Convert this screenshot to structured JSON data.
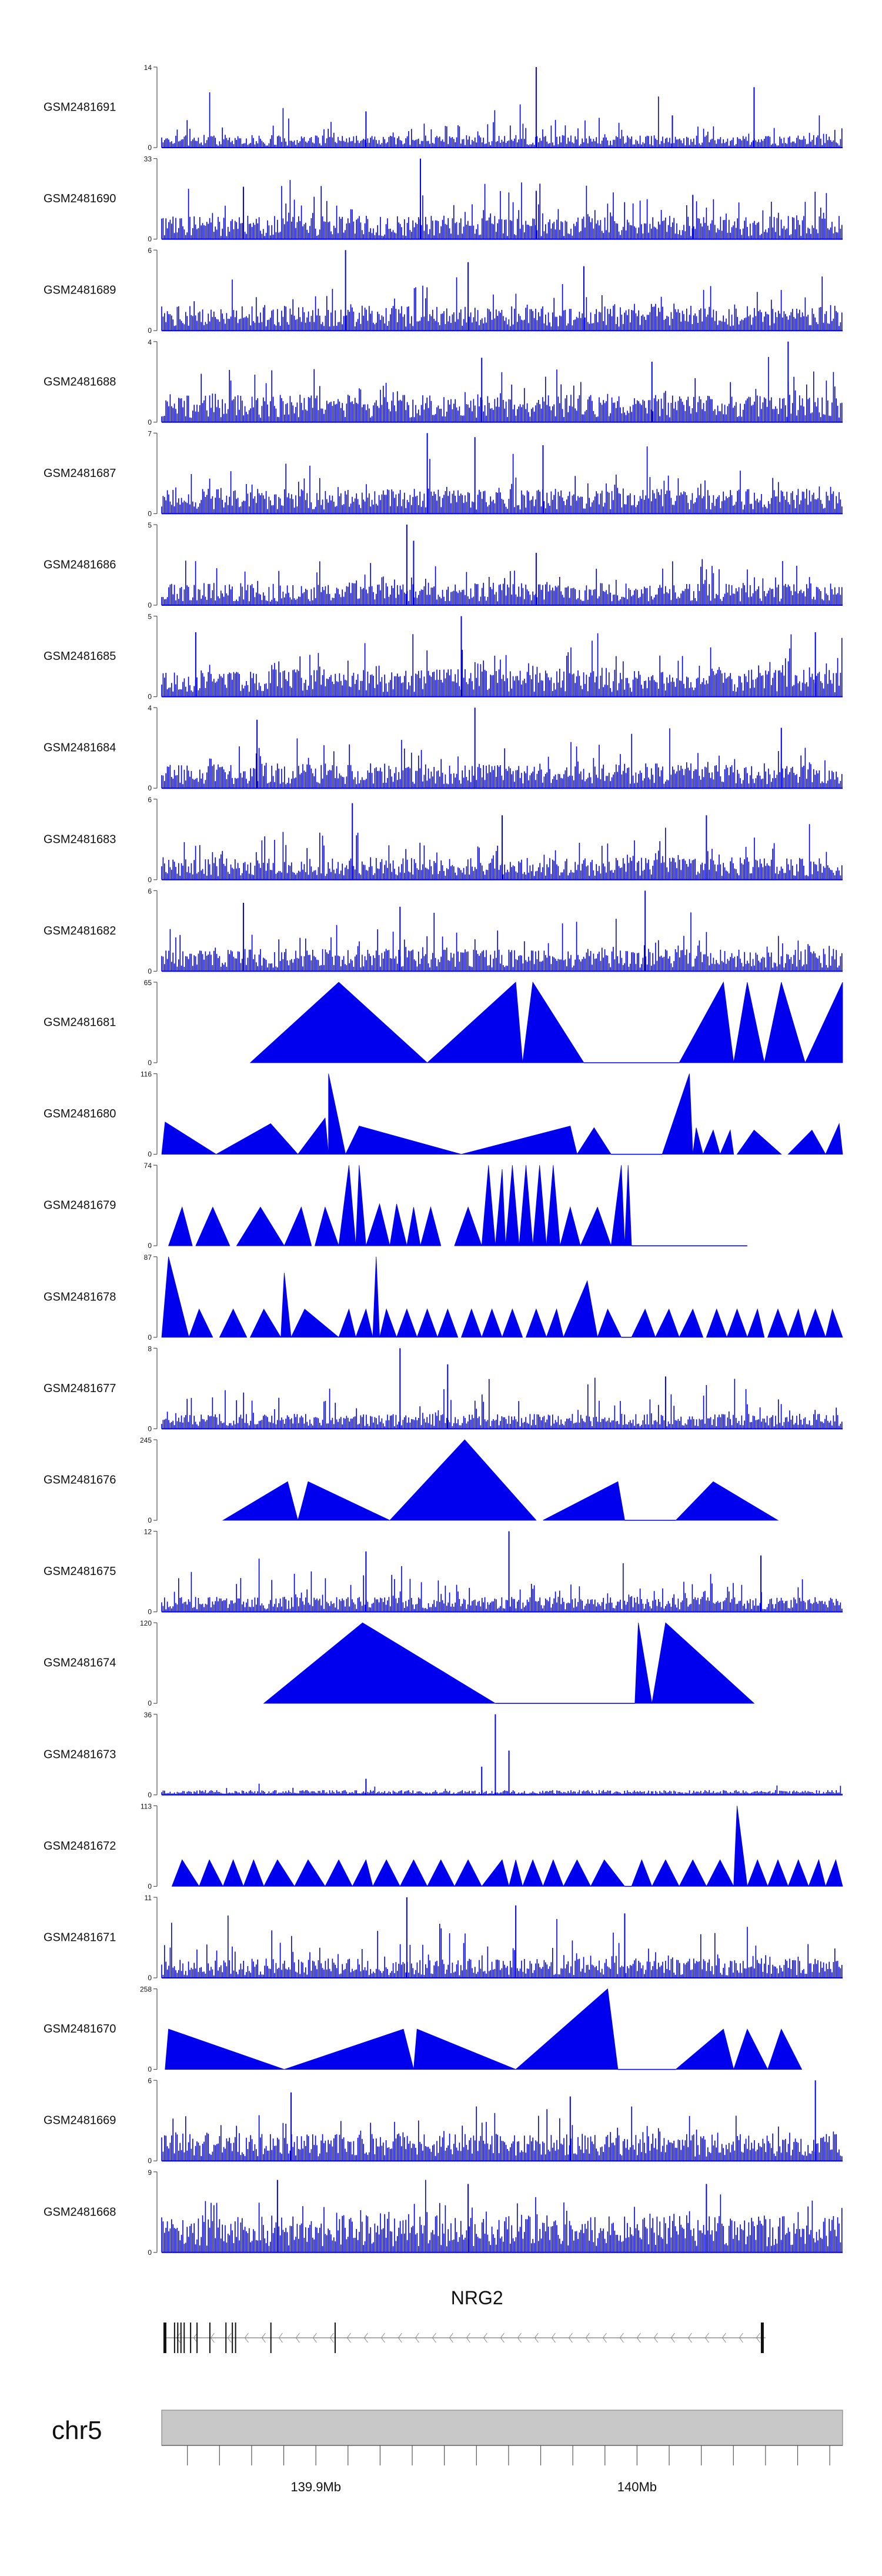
{
  "chart_data": {
    "type": "area",
    "title": "",
    "xlabel": "",
    "ylabel": "",
    "chromosome": "chr5",
    "x_range_mb": [
      139.852,
      140.064
    ],
    "x_ticks": [
      {
        "value": 139.9,
        "label": "139.9Mb"
      },
      {
        "value": 140.0,
        "label": "140Mb"
      }
    ],
    "gene": {
      "name": "NRG2",
      "strand": "-",
      "start_mb": 139.853,
      "end_mb": 140.04,
      "exons_mb": [
        139.853,
        139.856,
        139.857,
        139.858,
        139.859,
        139.861,
        139.863,
        139.867,
        139.872,
        139.874,
        139.875,
        139.886,
        139.906,
        140.039
      ]
    },
    "series_color": "#0000ee",
    "series": [
      {
        "name": "GSM2481691",
        "ymax": 14,
        "style": "dense",
        "baseline": 0.1,
        "seed": 91,
        "peaks": [
          [
            0.55,
            1.0
          ],
          [
            0.87,
            0.75
          ],
          [
            0.3,
            0.45
          ],
          [
            0.75,
            0.4
          ]
        ]
      },
      {
        "name": "GSM2481690",
        "ymax": 33,
        "style": "mixed",
        "baseline": 0.18,
        "seed": 90,
        "peaks": [
          [
            0.38,
            1.0
          ],
          [
            0.12,
            0.65
          ],
          [
            0.55,
            0.6
          ],
          [
            0.78,
            0.55
          ]
        ]
      },
      {
        "name": "GSM2481689",
        "ymax": 6,
        "style": "dense",
        "baseline": 0.2,
        "seed": 89,
        "peaks": [
          [
            0.27,
            1.0
          ],
          [
            0.45,
            0.85
          ],
          [
            0.62,
            0.8
          ]
        ]
      },
      {
        "name": "GSM2481688",
        "ymax": 4,
        "style": "dense",
        "baseline": 0.22,
        "seed": 88,
        "peaks": [
          [
            0.92,
            1.0
          ],
          [
            0.47,
            0.8
          ],
          [
            0.72,
            0.75
          ]
        ]
      },
      {
        "name": "GSM2481687",
        "ymax": 7,
        "style": "dense",
        "baseline": 0.2,
        "seed": 87,
        "peaks": [
          [
            0.39,
            1.0
          ],
          [
            0.46,
            0.95
          ],
          [
            0.56,
            0.85
          ]
        ]
      },
      {
        "name": "GSM2481686",
        "ymax": 5,
        "style": "dense",
        "baseline": 0.18,
        "seed": 86,
        "peaks": [
          [
            0.36,
            1.0
          ],
          [
            0.37,
            0.8
          ],
          [
            0.55,
            0.65
          ]
        ]
      },
      {
        "name": "GSM2481685",
        "ymax": 5,
        "style": "dense",
        "baseline": 0.22,
        "seed": 85,
        "peaks": [
          [
            0.44,
            1.0
          ],
          [
            0.05,
            0.8
          ],
          [
            0.96,
            0.8
          ]
        ]
      },
      {
        "name": "GSM2481684",
        "ymax": 4,
        "style": "dense",
        "baseline": 0.2,
        "seed": 84,
        "peaks": [
          [
            0.46,
            1.0
          ],
          [
            0.14,
            0.85
          ],
          [
            0.91,
            0.75
          ]
        ]
      },
      {
        "name": "GSM2481683",
        "ymax": 6,
        "style": "dense",
        "baseline": 0.18,
        "seed": 83,
        "peaks": [
          [
            0.28,
            0.95
          ],
          [
            0.5,
            0.8
          ],
          [
            0.8,
            0.8
          ]
        ]
      },
      {
        "name": "GSM2481682",
        "ymax": 6,
        "style": "dense",
        "baseline": 0.18,
        "seed": 82,
        "peaks": [
          [
            0.71,
            1.0
          ],
          [
            0.12,
            0.85
          ],
          [
            0.35,
            0.8
          ]
        ]
      },
      {
        "name": "GSM2481681",
        "ymax": 65,
        "style": "sparse",
        "baseline": 0,
        "seed": 81,
        "tri": [
          [
            0.13,
            0.26,
            0.39,
            1.0
          ],
          [
            0.39,
            0.52,
            0.53,
            1.0
          ],
          [
            0.53,
            0.545,
            0.62,
            1.0
          ],
          [
            0.76,
            0.825,
            0.84,
            1.0
          ],
          [
            0.84,
            0.86,
            0.885,
            1.0
          ],
          [
            0.885,
            0.91,
            0.945,
            1.0
          ],
          [
            0.945,
            1.0,
            1.0,
            1.0
          ]
        ],
        "flat": [
          [
            0.62,
            0.76
          ]
        ]
      },
      {
        "name": "GSM2481680",
        "ymax": 116,
        "style": "sparse",
        "baseline": 0,
        "seed": 80,
        "tri": [
          [
            0.0,
            0.005,
            0.08,
            0.4
          ],
          [
            0.08,
            0.16,
            0.2,
            0.38
          ],
          [
            0.2,
            0.24,
            0.245,
            0.45
          ],
          [
            0.245,
            0.245,
            0.27,
            1.0
          ],
          [
            0.27,
            0.29,
            0.44,
            0.35
          ],
          [
            0.44,
            0.6,
            0.61,
            0.35
          ],
          [
            0.61,
            0.635,
            0.66,
            0.33
          ],
          [
            0.735,
            0.775,
            0.78,
            1.0
          ],
          [
            0.78,
            0.785,
            0.795,
            0.33
          ],
          [
            0.795,
            0.81,
            0.82,
            0.3
          ],
          [
            0.82,
            0.835,
            0.84,
            0.3
          ],
          [
            0.845,
            0.87,
            0.91,
            0.3
          ],
          [
            0.92,
            0.955,
            0.975,
            0.3
          ],
          [
            0.975,
            0.995,
            1.0,
            0.38
          ]
        ],
        "flat": [
          [
            0.66,
            0.735
          ]
        ]
      },
      {
        "name": "GSM2481679",
        "ymax": 74,
        "style": "sparse",
        "baseline": 0,
        "seed": 79,
        "tri": [
          [
            0.01,
            0.03,
            0.045,
            0.48
          ],
          [
            0.05,
            0.075,
            0.1,
            0.48
          ],
          [
            0.11,
            0.145,
            0.18,
            0.48
          ],
          [
            0.18,
            0.205,
            0.22,
            0.48
          ],
          [
            0.225,
            0.24,
            0.26,
            0.48
          ],
          [
            0.26,
            0.275,
            0.285,
            1.0
          ],
          [
            0.285,
            0.29,
            0.3,
            1.0
          ],
          [
            0.3,
            0.32,
            0.335,
            0.52
          ],
          [
            0.335,
            0.345,
            0.36,
            0.52
          ],
          [
            0.36,
            0.37,
            0.38,
            0.48
          ],
          [
            0.38,
            0.395,
            0.41,
            0.48
          ],
          [
            0.43,
            0.45,
            0.47,
            0.48
          ],
          [
            0.47,
            0.48,
            0.49,
            1.0
          ],
          [
            0.49,
            0.5,
            0.505,
            0.95
          ],
          [
            0.505,
            0.515,
            0.525,
            1.0
          ],
          [
            0.525,
            0.535,
            0.545,
            1.0
          ],
          [
            0.545,
            0.555,
            0.565,
            1.0
          ],
          [
            0.565,
            0.575,
            0.585,
            1.0
          ],
          [
            0.585,
            0.6,
            0.615,
            0.48
          ],
          [
            0.615,
            0.64,
            0.66,
            0.48
          ],
          [
            0.66,
            0.675,
            0.68,
            1.0
          ],
          [
            0.68,
            0.685,
            0.69,
            1.0
          ]
        ],
        "flat": [
          [
            0.69,
            0.86
          ]
        ]
      },
      {
        "name": "GSM2481678",
        "ymax": 87,
        "style": "sparse",
        "baseline": 0,
        "seed": 78,
        "tri": [
          [
            0.0,
            0.01,
            0.04,
            1.0
          ],
          [
            0.04,
            0.055,
            0.075,
            0.35
          ],
          [
            0.085,
            0.105,
            0.125,
            0.35
          ],
          [
            0.13,
            0.15,
            0.175,
            0.35
          ],
          [
            0.175,
            0.18,
            0.19,
            0.8
          ],
          [
            0.19,
            0.21,
            0.26,
            0.35
          ],
          [
            0.26,
            0.275,
            0.285,
            0.35
          ],
          [
            0.285,
            0.3,
            0.31,
            0.35
          ],
          [
            0.31,
            0.315,
            0.32,
            1.0
          ],
          [
            0.32,
            0.33,
            0.345,
            0.35
          ],
          [
            0.345,
            0.36,
            0.375,
            0.35
          ],
          [
            0.375,
            0.39,
            0.405,
            0.35
          ],
          [
            0.405,
            0.42,
            0.435,
            0.35
          ],
          [
            0.44,
            0.455,
            0.47,
            0.35
          ],
          [
            0.47,
            0.485,
            0.5,
            0.35
          ],
          [
            0.5,
            0.515,
            0.53,
            0.35
          ],
          [
            0.535,
            0.55,
            0.565,
            0.35
          ],
          [
            0.565,
            0.58,
            0.59,
            0.35
          ],
          [
            0.59,
            0.625,
            0.64,
            0.7
          ],
          [
            0.64,
            0.655,
            0.675,
            0.35
          ],
          [
            0.69,
            0.71,
            0.725,
            0.35
          ],
          [
            0.725,
            0.745,
            0.76,
            0.35
          ],
          [
            0.76,
            0.78,
            0.795,
            0.35
          ],
          [
            0.8,
            0.815,
            0.83,
            0.35
          ],
          [
            0.83,
            0.845,
            0.86,
            0.35
          ],
          [
            0.86,
            0.875,
            0.885,
            0.35
          ],
          [
            0.89,
            0.905,
            0.92,
            0.35
          ],
          [
            0.92,
            0.935,
            0.945,
            0.35
          ],
          [
            0.945,
            0.96,
            0.975,
            0.35
          ],
          [
            0.975,
            0.985,
            1.0,
            0.35
          ]
        ],
        "flat": [
          [
            0.675,
            0.69
          ]
        ]
      },
      {
        "name": "GSM2481677",
        "ymax": 8,
        "style": "dense",
        "baseline": 0.12,
        "seed": 77,
        "peaks": [
          [
            0.35,
            1.0
          ],
          [
            0.42,
            0.8
          ],
          [
            0.74,
            0.65
          ]
        ]
      },
      {
        "name": "GSM2481676",
        "ymax": 245,
        "style": "sparse",
        "baseline": 0,
        "seed": 76,
        "tri": [
          [
            0.09,
            0.185,
            0.2,
            0.48
          ],
          [
            0.2,
            0.215,
            0.335,
            0.48
          ],
          [
            0.335,
            0.445,
            0.55,
            1.0
          ],
          [
            0.56,
            0.67,
            0.68,
            0.48
          ],
          [
            0.755,
            0.81,
            0.905,
            0.48
          ]
        ],
        "flat": [
          [
            0.68,
            0.755
          ]
        ]
      },
      {
        "name": "GSM2481675",
        "ymax": 12,
        "style": "dense",
        "baseline": 0.12,
        "seed": 75,
        "peaks": [
          [
            0.51,
            1.0
          ],
          [
            0.3,
            0.75
          ],
          [
            0.88,
            0.7
          ]
        ]
      },
      {
        "name": "GSM2481674",
        "ymax": 120,
        "style": "sparse",
        "baseline": 0,
        "seed": 74,
        "tri": [
          [
            0.15,
            0.295,
            0.49,
            1.0
          ],
          [
            0.695,
            0.7,
            0.72,
            1.0
          ],
          [
            0.72,
            0.74,
            0.87,
            1.0
          ]
        ],
        "flat": [
          [
            0.49,
            0.695
          ]
        ]
      },
      {
        "name": "GSM2481673",
        "ymax": 36,
        "style": "quiet",
        "baseline": 0.04,
        "seed": 73,
        "peaks": [
          [
            0.49,
            1.0
          ],
          [
            0.51,
            0.55
          ],
          [
            0.47,
            0.35
          ],
          [
            0.3,
            0.2
          ]
        ]
      },
      {
        "name": "GSM2481672",
        "ymax": 113,
        "style": "sparse",
        "baseline": 0,
        "seed": 72,
        "tri": [
          [
            0.015,
            0.03,
            0.055,
            0.33
          ],
          [
            0.055,
            0.07,
            0.09,
            0.33
          ],
          [
            0.09,
            0.105,
            0.12,
            0.33
          ],
          [
            0.12,
            0.135,
            0.15,
            0.33
          ],
          [
            0.15,
            0.17,
            0.195,
            0.33
          ],
          [
            0.195,
            0.215,
            0.24,
            0.33
          ],
          [
            0.24,
            0.26,
            0.28,
            0.33
          ],
          [
            0.28,
            0.3,
            0.31,
            0.33
          ],
          [
            0.31,
            0.33,
            0.35,
            0.33
          ],
          [
            0.35,
            0.37,
            0.39,
            0.33
          ],
          [
            0.39,
            0.41,
            0.43,
            0.33
          ],
          [
            0.43,
            0.45,
            0.47,
            0.33
          ],
          [
            0.47,
            0.5,
            0.51,
            0.33
          ],
          [
            0.51,
            0.52,
            0.53,
            0.33
          ],
          [
            0.53,
            0.545,
            0.56,
            0.33
          ],
          [
            0.56,
            0.575,
            0.59,
            0.33
          ],
          [
            0.59,
            0.61,
            0.63,
            0.33
          ],
          [
            0.63,
            0.65,
            0.68,
            0.33
          ],
          [
            0.69,
            0.705,
            0.72,
            0.33
          ],
          [
            0.72,
            0.74,
            0.76,
            0.33
          ],
          [
            0.76,
            0.78,
            0.8,
            0.33
          ],
          [
            0.8,
            0.82,
            0.84,
            0.33
          ],
          [
            0.84,
            0.845,
            0.86,
            1.0
          ],
          [
            0.86,
            0.875,
            0.89,
            0.33
          ],
          [
            0.89,
            0.905,
            0.92,
            0.33
          ],
          [
            0.92,
            0.935,
            0.95,
            0.33
          ],
          [
            0.95,
            0.965,
            0.975,
            0.33
          ],
          [
            0.975,
            0.99,
            1.0,
            0.33
          ]
        ],
        "flat": [
          [
            0.68,
            0.69
          ]
        ]
      },
      {
        "name": "GSM2481671",
        "ymax": 11,
        "style": "mixed",
        "baseline": 0.15,
        "seed": 71,
        "peaks": [
          [
            0.36,
            1.0
          ],
          [
            0.52,
            0.9
          ],
          [
            0.68,
            0.8
          ]
        ]
      },
      {
        "name": "GSM2481670",
        "ymax": 258,
        "style": "sparse",
        "baseline": 0,
        "seed": 70,
        "tri": [
          [
            0.005,
            0.01,
            0.18,
            0.5
          ],
          [
            0.18,
            0.355,
            0.37,
            0.5
          ],
          [
            0.37,
            0.375,
            0.52,
            0.5
          ],
          [
            0.52,
            0.655,
            0.67,
            1.0
          ],
          [
            0.755,
            0.825,
            0.84,
            0.5
          ],
          [
            0.84,
            0.86,
            0.89,
            0.5
          ],
          [
            0.89,
            0.91,
            0.94,
            0.5
          ]
        ],
        "flat": [
          [
            0.67,
            0.755
          ]
        ]
      },
      {
        "name": "GSM2481669",
        "ymax": 6,
        "style": "dense",
        "baseline": 0.22,
        "seed": 69,
        "peaks": [
          [
            0.96,
            1.0
          ],
          [
            0.19,
            0.85
          ],
          [
            0.6,
            0.8
          ]
        ]
      },
      {
        "name": "GSM2481668",
        "ymax": 9,
        "style": "dense",
        "baseline": 0.3,
        "seed": 68,
        "peaks": [
          [
            0.17,
            0.9
          ],
          [
            0.45,
            0.85
          ],
          [
            0.8,
            0.85
          ]
        ]
      }
    ]
  }
}
